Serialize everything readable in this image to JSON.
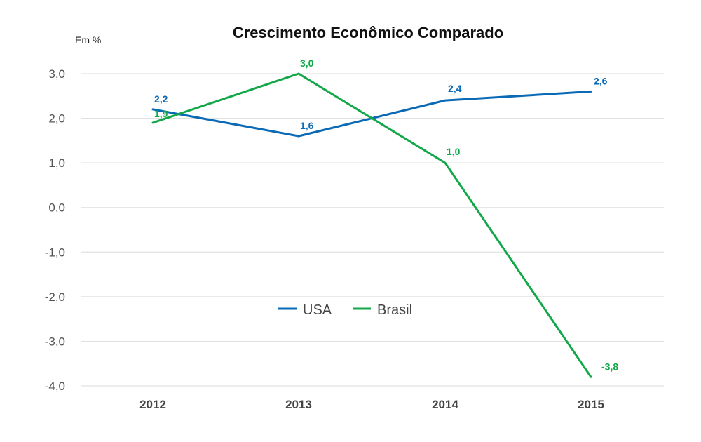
{
  "chart_data": {
    "type": "line",
    "title": "Crescimento Econômico Comparado",
    "unit_label": "Em %",
    "x": [
      "2012",
      "2013",
      "2014",
      "2015"
    ],
    "ylim": [
      -4.0,
      3.0
    ],
    "yticks": [
      "3,0",
      "2,0",
      "1,0",
      "0,0",
      "-1,0",
      "-2,0",
      "-3,0",
      "-4,0"
    ],
    "ytick_values": [
      3,
      2,
      1,
      0,
      -1,
      -2,
      -3,
      -4
    ],
    "grid": true,
    "legend_position": "center",
    "series": [
      {
        "name": "USA",
        "color": "#0b6ab5",
        "values": [
          2.2,
          1.6,
          2.4,
          2.6
        ],
        "labels": [
          "2,2",
          "1,6",
          "2,4",
          "2,6"
        ]
      },
      {
        "name": "Brasil",
        "color": "#12a84a",
        "values": [
          1.9,
          3.0,
          1.0,
          -3.8
        ],
        "labels": [
          "1,9",
          "3,0",
          "1,0",
          "-3,8"
        ]
      }
    ]
  }
}
